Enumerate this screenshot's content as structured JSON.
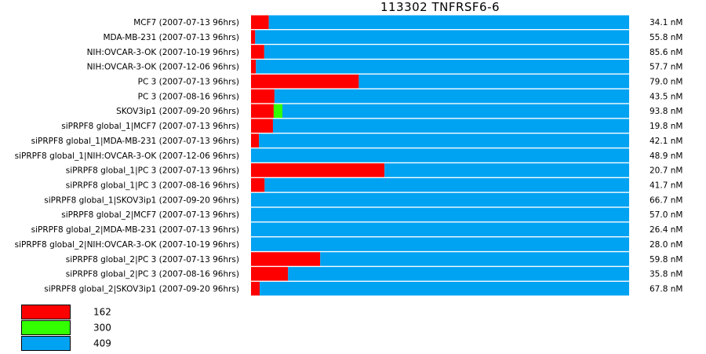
{
  "chart_data": {
    "type": "bar",
    "orientation": "horizontal",
    "stacked": true,
    "normalized": true,
    "title": "113302  TNFRSF6-6",
    "categories": [
      "MCF7 (2007-07-13 96hrs)",
      "MDA-MB-231 (2007-07-13 96hrs)",
      "NIH:OVCAR-3-OK (2007-10-19 96hrs)",
      "NIH:OVCAR-3-OK (2007-12-06 96hrs)",
      "PC 3 (2007-07-13 96hrs)",
      "PC 3 (2007-08-16 96hrs)",
      "SKOV3ip1 (2007-09-20 96hrs)",
      "siPRPF8 global_1|MCF7 (2007-07-13 96hrs)",
      "siPRPF8 global_1|MDA-MB-231 (2007-07-13 96hrs)",
      "siPRPF8 global_1|NIH:OVCAR-3-OK (2007-12-06 96hrs)",
      "siPRPF8 global_1|PC 3 (2007-07-13 96hrs)",
      "siPRPF8 global_1|PC 3 (2007-08-16 96hrs)",
      "siPRPF8 global_1|SKOV3ip1 (2007-09-20 96hrs)",
      "siPRPF8 global_2|MCF7 (2007-07-13 96hrs)",
      "siPRPF8 global_2|MDA-MB-231 (2007-07-13 96hrs)",
      "siPRPF8 global_2|NIH:OVCAR-3-OK (2007-10-19 96hrs)",
      "siPRPF8 global_2|PC 3 (2007-07-13 96hrs)",
      "siPRPF8 global_2|PC 3 (2007-08-16 96hrs)",
      "siPRPF8 global_2|SKOV3ip1 (2007-09-20 96hrs)"
    ],
    "value_labels": [
      "34.1 nM",
      "55.8 nM",
      "85.6 nM",
      "57.7 nM",
      "79.0 nM",
      "43.5 nM",
      "93.8 nM",
      "19.8 nM",
      "42.1 nM",
      "48.9 nM",
      "20.7 nM",
      "41.7 nM",
      "66.7 nM",
      "57.0 nM",
      "26.4 nM",
      "28.0 nM",
      "59.8 nM",
      "35.8 nM",
      "67.8 nM"
    ],
    "series": [
      {
        "name": "162",
        "color": "#ff0000",
        "values": [
          4.7,
          1.1,
          3.5,
          1.3,
          28.5,
          6.2,
          6.0,
          5.8,
          2.1,
          0,
          35.3,
          3.6,
          0,
          0,
          0,
          0,
          18.3,
          9.8,
          2.3
        ]
      },
      {
        "name": "300",
        "color": "#33ff00",
        "values": [
          0,
          0,
          0,
          0,
          0,
          0,
          2.3,
          0,
          0,
          0,
          0,
          0,
          0,
          0,
          0,
          0,
          0,
          0,
          0
        ]
      },
      {
        "name": "409",
        "color": "#00a2f2",
        "values": [
          95.3,
          98.9,
          96.5,
          98.7,
          71.5,
          93.8,
          91.7,
          94.2,
          97.9,
          100,
          64.7,
          96.4,
          100,
          100,
          100,
          100,
          81.7,
          90.2,
          97.7
        ]
      }
    ],
    "xlim": [
      0,
      100
    ],
    "grid": false,
    "legend_position": "bottom-left"
  }
}
